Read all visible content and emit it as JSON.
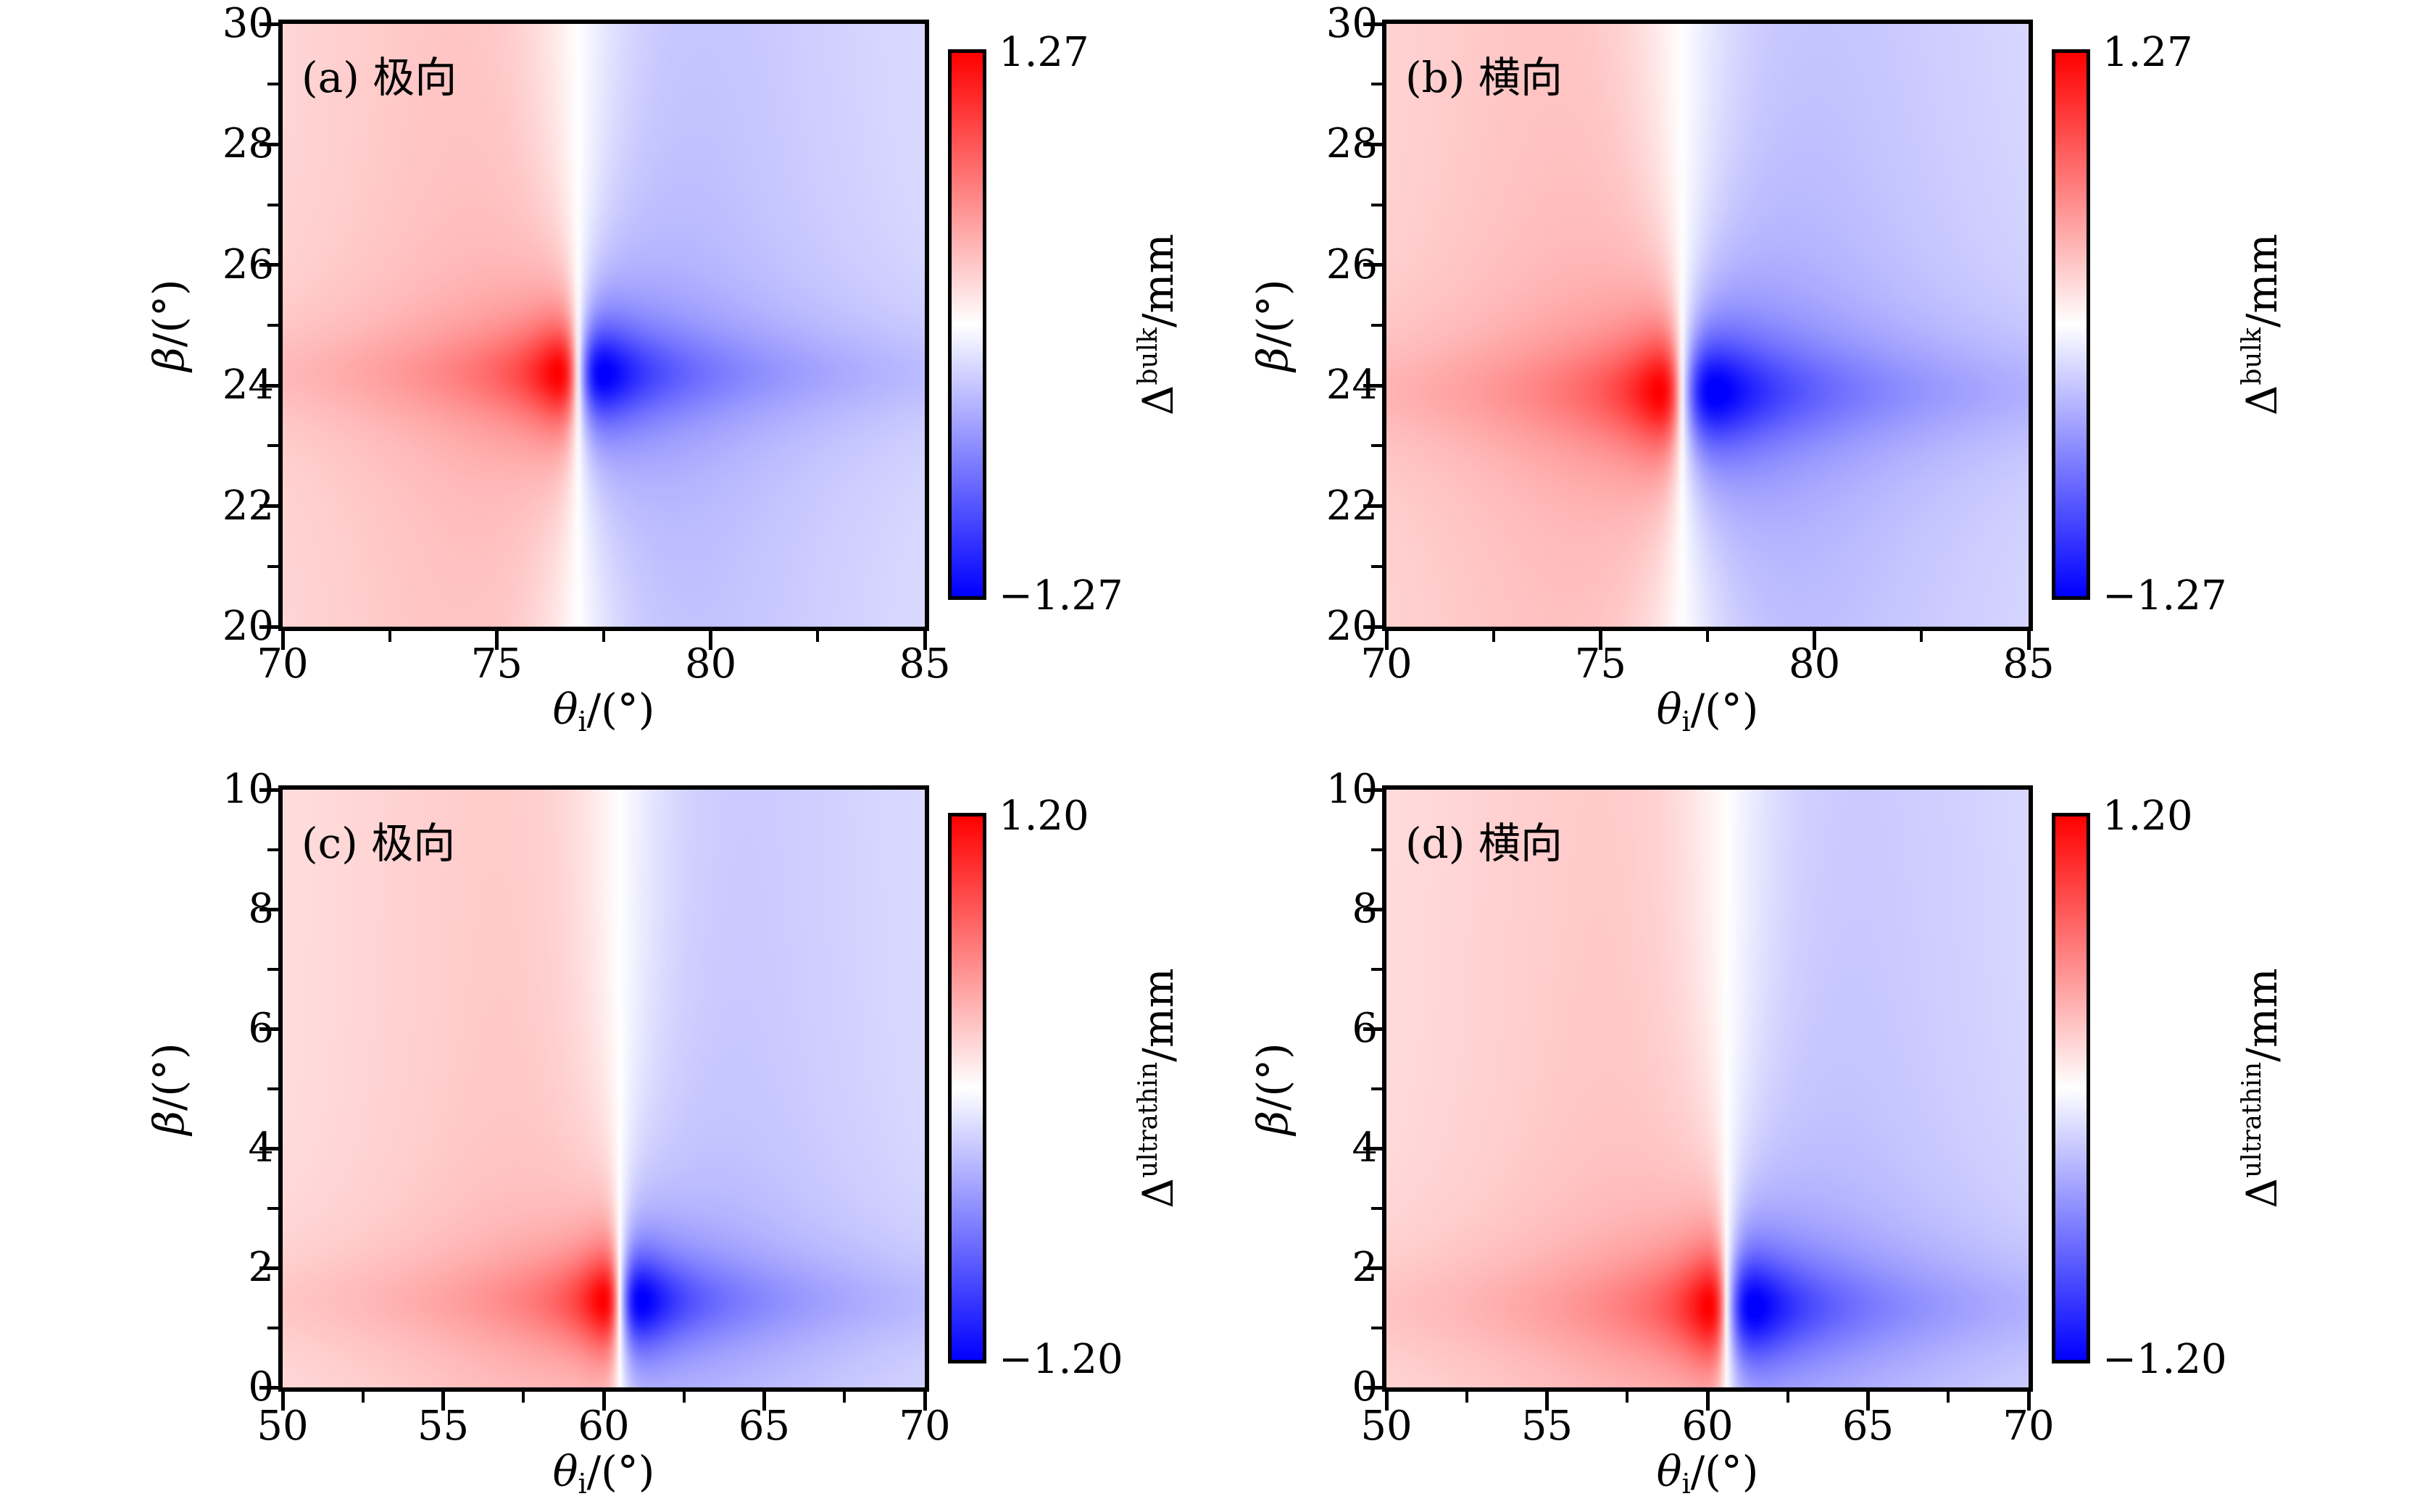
{
  "figure": {
    "background": "#ffffff",
    "colormap": {
      "name": "blue-white-red",
      "negative": "#0000ff",
      "zero": "#ffffff",
      "positive": "#ff0000"
    }
  },
  "panels": [
    {
      "title": "(a) 极向",
      "x_tick_labels": [
        "70",
        "75",
        "80",
        "85"
      ],
      "y_tick_labels": [
        "20",
        "22",
        "24",
        "26",
        "28",
        "30"
      ],
      "xlabel": {
        "theta": "θ",
        "sub": "i",
        "rest": "/(°)"
      },
      "ylabel": {
        "beta": "β",
        "rest": "/(°)"
      },
      "colorbar": {
        "max": "1.27",
        "min": "−1.27",
        "delta": "Δ",
        "sup": "bulk",
        "unit": "/mm"
      }
    },
    {
      "title": "(b) 横向",
      "x_tick_labels": [
        "70",
        "75",
        "80",
        "85"
      ],
      "y_tick_labels": [
        "20",
        "22",
        "24",
        "26",
        "28",
        "30"
      ],
      "xlabel": {
        "theta": "θ",
        "sub": "i",
        "rest": "/(°)"
      },
      "ylabel": {
        "beta": "β",
        "rest": "/(°)"
      },
      "colorbar": {
        "max": "1.27",
        "min": "−1.27",
        "delta": "Δ",
        "sup": "bulk",
        "unit": "/mm"
      }
    },
    {
      "title": "(c) 极向",
      "x_tick_labels": [
        "50",
        "55",
        "60",
        "65",
        "70"
      ],
      "y_tick_labels": [
        "0",
        "2",
        "4",
        "6",
        "8",
        "10"
      ],
      "xlabel": {
        "theta": "θ",
        "sub": "i",
        "rest": "/(°)"
      },
      "ylabel": {
        "beta": "β",
        "rest": "/(°)"
      },
      "colorbar": {
        "max": "1.20",
        "min": "−1.20",
        "delta": "Δ",
        "sup": "ultrathin",
        "unit": "/mm"
      }
    },
    {
      "title": "(d) 横向",
      "x_tick_labels": [
        "50",
        "55",
        "60",
        "65",
        "70"
      ],
      "y_tick_labels": [
        "0",
        "2",
        "4",
        "6",
        "8",
        "10"
      ],
      "xlabel": {
        "theta": "θ",
        "sub": "i",
        "rest": "/(°)"
      },
      "ylabel": {
        "beta": "β",
        "rest": "/(°)"
      },
      "colorbar": {
        "max": "1.20",
        "min": "−1.20",
        "delta": "Δ",
        "sup": "ultrathin",
        "unit": "/mm"
      }
    }
  ],
  "chart_data": [
    {
      "type": "heatmap",
      "panel": "a",
      "title": "(a) 极向",
      "xlabel": "θi/(°)",
      "ylabel": "β/(°)",
      "xlim": [
        70,
        85
      ],
      "ylim": [
        20,
        30
      ],
      "x_major_ticks": [
        70,
        75,
        80,
        85
      ],
      "x_minor_ticks": [
        72.5,
        77.5,
        82.5
      ],
      "y_major_ticks": [
        20,
        22,
        24,
        26,
        28,
        30
      ],
      "y_minor_ticks": [
        21,
        23,
        25,
        27,
        29
      ],
      "colorbar_label": "Δbulk/mm",
      "vmax": 1.27,
      "vmin": -1.27,
      "colormap": "blue-white-red",
      "zero_crossing_theta_deg": 76.9,
      "resonance_beta_deg": 24.2,
      "pattern": "dispersive resonance: red lobe (positive shift, peak +1.27 mm) just left of the vertical white zero line, blue lobe (−1.27 mm) just right; pale red background for θ<76.9°, pale blue for θ>76.9°",
      "model": {
        "x0": 76.9,
        "y0": 24.2,
        "w0": 0.45,
        "sw": 3.1,
        "sa": 0.85,
        "B": 0.18,
        "wb": 3.0,
        "asym": 1.25,
        "gain": 1.15
      }
    },
    {
      "type": "heatmap",
      "panel": "b",
      "title": "(b) 横向",
      "xlabel": "θi/(°)",
      "ylabel": "β/(°)",
      "xlim": [
        70,
        85
      ],
      "ylim": [
        20,
        30
      ],
      "x_major_ticks": [
        70,
        75,
        80,
        85
      ],
      "x_minor_ticks": [
        72.5,
        77.5,
        82.5
      ],
      "y_major_ticks": [
        20,
        22,
        24,
        26,
        28,
        30
      ],
      "y_minor_ticks": [
        21,
        23,
        25,
        27,
        29
      ],
      "colorbar_label": "Δbulk/mm",
      "vmax": 1.27,
      "vmin": -1.27,
      "colormap": "blue-white-red",
      "zero_crossing_theta_deg": 76.9,
      "resonance_beta_deg": 23.9,
      "pattern": "same dispersive structure as (a) with resonance slightly lower in β and a broader blue lobe",
      "model": {
        "x0": 76.9,
        "y0": 23.9,
        "w0": 0.5,
        "sw": 3.1,
        "sa": 0.95,
        "B": 0.18,
        "wb": 3.2,
        "asym": 1.45,
        "gain": 1.15
      }
    },
    {
      "type": "heatmap",
      "panel": "c",
      "title": "(c) 极向",
      "xlabel": "θi/(°)",
      "ylabel": "β/(°)",
      "xlim": [
        50,
        70
      ],
      "ylim": [
        0,
        10
      ],
      "x_major_ticks": [
        50,
        55,
        60,
        65,
        70
      ],
      "x_minor_ticks": [
        52.5,
        57.5,
        62.5,
        67.5
      ],
      "y_major_ticks": [
        0,
        2,
        4,
        6,
        8,
        10
      ],
      "y_minor_ticks": [
        1,
        3,
        5,
        7,
        9
      ],
      "colorbar_label": "Δultrathin/mm",
      "vmax": 1.2,
      "vmin": -1.2,
      "colormap": "blue-white-red",
      "zero_crossing_theta_deg": 60.5,
      "resonance_beta_deg": 1.45,
      "pattern": "red lobe (peak +1.20 mm) left of white zero line near θ=60.5°, β≈1.4; blue lobe (−1.20 mm) right; pale red background left, pale blue right",
      "model": {
        "x0": 60.5,
        "y0": 1.45,
        "w0": 0.5,
        "sw": 4.3,
        "sa": 0.85,
        "B": 0.17,
        "wb": 4.0,
        "asym": 1.3,
        "gain": 1.15
      }
    },
    {
      "type": "heatmap",
      "panel": "d",
      "title": "(d) 横向",
      "xlabel": "θi/(°)",
      "ylabel": "β/(°)",
      "xlim": [
        50,
        70
      ],
      "ylim": [
        0,
        10
      ],
      "x_major_ticks": [
        50,
        55,
        60,
        65,
        70
      ],
      "x_minor_ticks": [
        52.5,
        57.5,
        62.5,
        67.5
      ],
      "y_major_ticks": [
        0,
        2,
        4,
        6,
        8,
        10
      ],
      "y_minor_ticks": [
        1,
        3,
        5,
        7,
        9
      ],
      "colorbar_label": "Δultrathin/mm",
      "vmax": 1.2,
      "vmin": -1.2,
      "colormap": "blue-white-red",
      "zero_crossing_theta_deg": 60.6,
      "resonance_beta_deg": 1.35,
      "pattern": "same dispersive structure as (c) with slightly broader blue lobe",
      "model": {
        "x0": 60.6,
        "y0": 1.35,
        "w0": 0.55,
        "sw": 4.3,
        "sa": 0.95,
        "B": 0.17,
        "wb": 4.2,
        "asym": 1.45,
        "gain": 1.15
      }
    }
  ]
}
